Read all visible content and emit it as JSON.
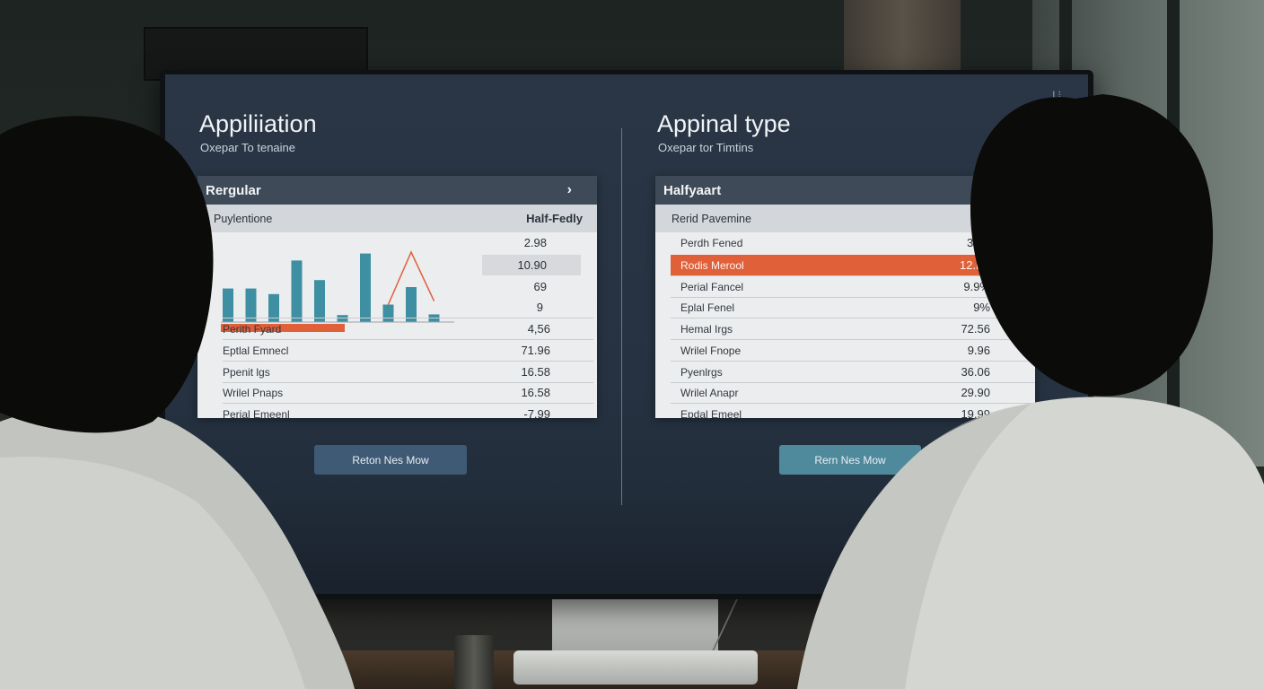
{
  "colors": {
    "accent_orange": "#e0603a",
    "bar_teal": "#3f8fa3",
    "card_header": "#3e4a57",
    "left_button": "#3f5a74",
    "right_button": "#4f8a9c"
  },
  "screen": {
    "corner_mark": "L⁝"
  },
  "left_panel": {
    "title": "Appiliiation",
    "subtitle": "Oxepar To tenaine",
    "card_header": "Rergular",
    "card_header_icon": "chevron-right-icon",
    "column_label_1": "Puylentione",
    "column_label_2": "Half-Fedly",
    "rows": [
      {
        "label": "",
        "value": "2.98"
      },
      {
        "label": "",
        "value": "10.90"
      },
      {
        "label": "",
        "value": "69"
      },
      {
        "label": "",
        "value": "9"
      },
      {
        "label": "Perith Fyard",
        "value": "4,56"
      },
      {
        "label": "Eptlal Emnecl",
        "value": "71.96"
      },
      {
        "label": "Ppenit lgs",
        "value": "16.58"
      },
      {
        "label": "Wrilel Pnaps",
        "value": "16.58"
      },
      {
        "label": "Perial Emeenl",
        "value": "-7.99"
      }
    ],
    "button_label": "Reton Nes Mow"
  },
  "right_panel": {
    "title": "Appinal type",
    "subtitle": "Oxepar tor Timtins",
    "card_header": "Halfyaart",
    "column_label_1": "Rerid Pavemine",
    "rows": [
      {
        "label": "Perdh Fened",
        "value": "3%0"
      },
      {
        "label": "Rodis Merool",
        "value": "12.P8"
      },
      {
        "label": "Perial Fancel",
        "value": "9.9%"
      },
      {
        "label": "Eplal Fenel",
        "value": "9%"
      },
      {
        "label": "Hemal Irgs",
        "value": "72.56"
      },
      {
        "label": "Wrilel Fnope",
        "value": "9.96"
      },
      {
        "label": "Pyenlrgs",
        "value": "36.06"
      },
      {
        "label": "Wrilel Anapr",
        "value": "29.90"
      },
      {
        "label": "Epdal Emeel",
        "value": "19.99"
      }
    ],
    "button_label": "Rern Nes Mow"
  },
  "chart_data": {
    "type": "bar",
    "title": "",
    "xlabel": "",
    "ylabel": "",
    "ylim": [
      0,
      100
    ],
    "values": [
      48,
      48,
      40,
      88,
      60,
      10,
      98,
      25,
      50,
      11
    ],
    "series": [
      {
        "name": "",
        "type": "line",
        "values": [
          null,
          null,
          null,
          null,
          null,
          null,
          null,
          25,
          100,
          30
        ]
      }
    ],
    "grid": false,
    "legend": "none"
  }
}
